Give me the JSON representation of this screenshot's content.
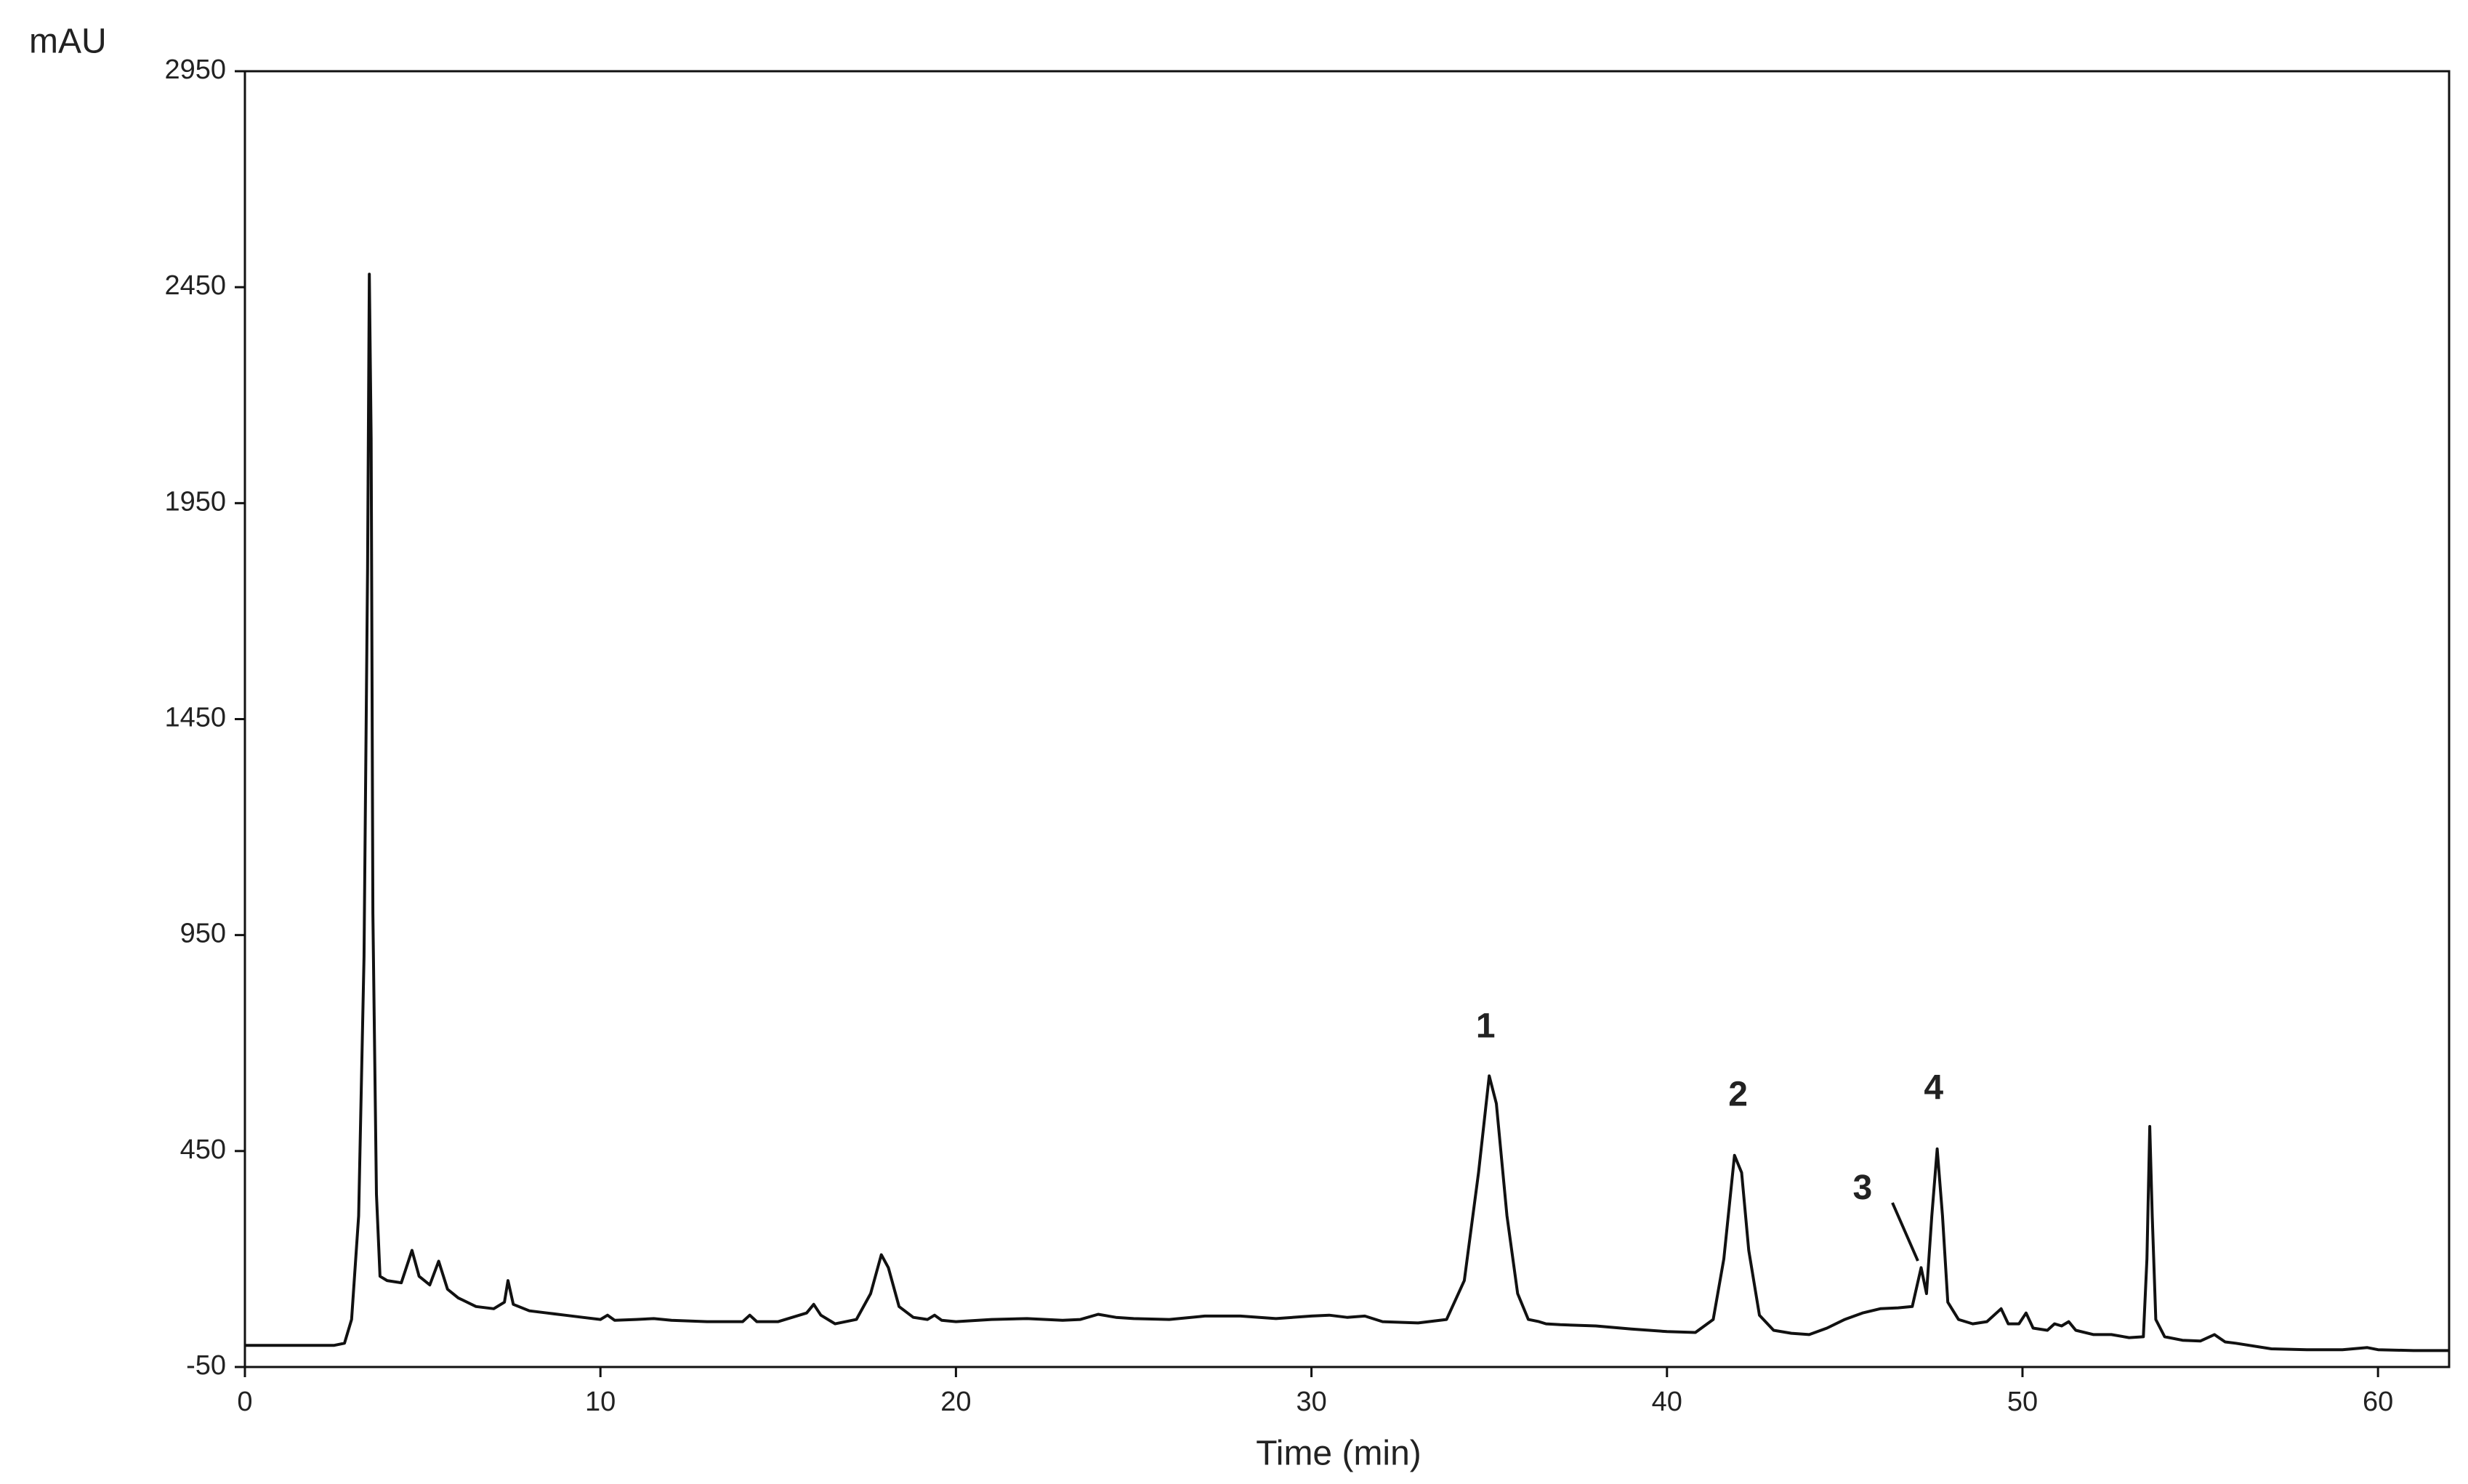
{
  "chart_data": {
    "type": "line",
    "y_unit_label": "mAU",
    "x_label": "Time (min)",
    "color": "#111111",
    "xlim": [
      0,
      62
    ],
    "xticks": [
      0,
      10,
      20,
      30,
      40,
      50,
      60
    ],
    "ylim": [
      -50,
      2950
    ],
    "yticks": [
      -50,
      450,
      950,
      1450,
      1950,
      2450,
      2950
    ],
    "grid": false,
    "annotations": [
      {
        "text": "1",
        "x": 34.9,
        "y": 734
      },
      {
        "text": "2",
        "x": 42.0,
        "y": 576
      },
      {
        "text": "3",
        "x": 45.5,
        "y": 360
      },
      {
        "text": "4",
        "x": 47.5,
        "y": 591
      }
    ],
    "x": [
      0,
      2.5,
      2.8,
      3.0,
      3.2,
      3.35,
      3.45,
      3.5,
      3.55,
      3.6,
      3.7,
      3.8,
      4.0,
      4.4,
      4.7,
      4.9,
      5.2,
      5.45,
      5.7,
      6.0,
      6.5,
      7.0,
      7.3,
      7.4,
      7.55,
      8.0,
      8.5,
      9.0,
      9.5,
      10.0,
      10.2,
      10.4,
      11.0,
      11.5,
      12.0,
      13.0,
      14.0,
      14.2,
      14.4,
      15.0,
      15.8,
      16.0,
      16.2,
      16.6,
      17.2,
      17.6,
      17.9,
      18.1,
      18.4,
      18.8,
      19.2,
      19.4,
      19.6,
      20.0,
      21.0,
      22.0,
      23.0,
      23.5,
      24.0,
      24.5,
      25.0,
      26.0,
      27.0,
      28.0,
      29.0,
      30.0,
      30.5,
      31.0,
      31.5,
      32.0,
      33.0,
      33.8,
      34.3,
      34.7,
      35.0,
      35.2,
      35.5,
      35.8,
      36.1,
      36.4,
      36.6,
      37.0,
      38.0,
      39.0,
      40.0,
      40.8,
      41.3,
      41.6,
      41.9,
      42.1,
      42.3,
      42.6,
      43.0,
      43.5,
      44.0,
      44.5,
      45.0,
      45.5,
      46.0,
      46.5,
      46.9,
      47.15,
      47.3,
      47.45,
      47.6,
      47.75,
      47.9,
      48.2,
      48.6,
      49.0,
      49.4,
      49.6,
      49.9,
      50.1,
      50.3,
      50.7,
      50.9,
      51.1,
      51.3,
      51.5,
      52.0,
      52.5,
      53.0,
      53.4,
      53.5,
      53.58,
      53.65,
      53.75,
      54.0,
      54.5,
      55.0,
      55.4,
      55.7,
      56.0,
      57.0,
      58.0,
      59.0,
      59.7,
      60.0,
      61.0,
      62.0
    ],
    "values": [
      0,
      0,
      5,
      60,
      300,
      900,
      1800,
      2480,
      2100,
      1000,
      350,
      160,
      150,
      145,
      220,
      160,
      140,
      195,
      130,
      110,
      90,
      85,
      100,
      150,
      95,
      80,
      75,
      70,
      65,
      60,
      70,
      58,
      60,
      62,
      58,
      55,
      55,
      70,
      55,
      55,
      75,
      95,
      70,
      50,
      60,
      120,
      210,
      180,
      90,
      65,
      60,
      70,
      58,
      55,
      60,
      62,
      58,
      60,
      72,
      65,
      62,
      60,
      68,
      68,
      62,
      68,
      70,
      65,
      68,
      55,
      52,
      60,
      150,
      400,
      624,
      560,
      300,
      120,
      60,
      55,
      50,
      48,
      45,
      38,
      32,
      30,
      60,
      200,
      440,
      400,
      220,
      70,
      35,
      28,
      25,
      40,
      60,
      75,
      85,
      87,
      90,
      180,
      120,
      300,
      455,
      300,
      100,
      60,
      50,
      55,
      85,
      50,
      50,
      75,
      40,
      35,
      50,
      45,
      55,
      35,
      25,
      25,
      18,
      20,
      200,
      507,
      300,
      60,
      20,
      12,
      10,
      25,
      8,
      5,
      -8,
      -10,
      -10,
      -5,
      -10,
      -12,
      -12
    ]
  }
}
